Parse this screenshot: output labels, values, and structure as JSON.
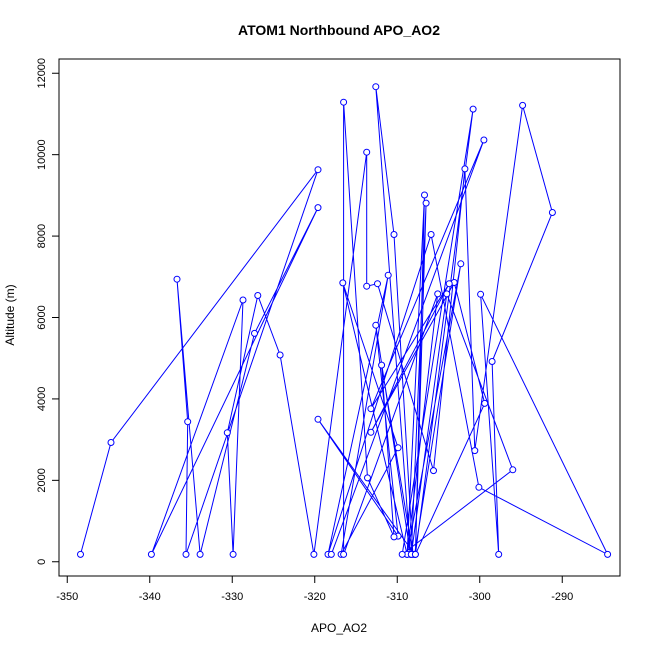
{
  "chart_data": {
    "type": "line",
    "title": "ATOM1 Northbound APO_AO2",
    "xlabel": "APO_AO2",
    "ylabel": "Altitude (m)",
    "xlim": [
      -351,
      -283
    ],
    "ylim": [
      -350,
      12350
    ],
    "xticks": [
      -350,
      -340,
      -330,
      -320,
      -310,
      -300,
      -290
    ],
    "yticks": [
      0,
      2000,
      4000,
      6000,
      8000,
      10000,
      12000
    ],
    "series": [
      {
        "color": "#0000ff",
        "marker": "open-circle",
        "points": [
          [
            -348.4,
            180
          ],
          [
            -344.7,
            2930
          ],
          [
            -319.6,
            9630
          ],
          [
            -335.6,
            180
          ],
          [
            -335.4,
            3440
          ],
          [
            -336.7,
            6940
          ],
          [
            -333.9,
            180
          ],
          [
            -327.3,
            5610
          ],
          [
            -319.6,
            8700
          ],
          [
            -339.8,
            180
          ],
          [
            -328.7,
            6430
          ],
          [
            -329.9,
            180
          ],
          [
            -330.6,
            3170
          ],
          [
            -326.9,
            6540
          ],
          [
            -324.2,
            5080
          ],
          [
            -320.1,
            180
          ],
          [
            -313.7,
            10060
          ],
          [
            -313.7,
            6770
          ],
          [
            -312.4,
            6830
          ],
          [
            -305.6,
            2240
          ],
          [
            -301.8,
            9650
          ],
          [
            -300.6,
            2730
          ],
          [
            -294.8,
            11210
          ],
          [
            -291.2,
            8580
          ],
          [
            -298.5,
            4920
          ],
          [
            -297.7,
            180
          ],
          [
            -299.9,
            6570
          ],
          [
            -284.5,
            180
          ],
          [
            -300.1,
            1830
          ],
          [
            -305.9,
            8040
          ],
          [
            -318.4,
            180
          ],
          [
            -311.1,
            7040
          ],
          [
            -316.8,
            180
          ],
          [
            -309.9,
            2800
          ],
          [
            -316.6,
            6850
          ],
          [
            -308.8,
            180
          ],
          [
            -302.3,
            7320
          ],
          [
            -307.9,
            180
          ],
          [
            -319.6,
            3500
          ],
          [
            -309.9,
            630
          ],
          [
            -312.6,
            5810
          ],
          [
            -308.4,
            180
          ],
          [
            -312.6,
            11670
          ],
          [
            -310.4,
            8040
          ],
          [
            -308.1,
            180
          ],
          [
            -311.9,
            4830
          ],
          [
            -310.4,
            610
          ],
          [
            -313.6,
            2060
          ],
          [
            -316.5,
            11290
          ],
          [
            -316.5,
            180
          ],
          [
            -305.1,
            6580
          ],
          [
            -308.8,
            180
          ],
          [
            -306.7,
            9010
          ],
          [
            -307.8,
            180
          ],
          [
            -300.8,
            11120
          ],
          [
            -309.4,
            180
          ],
          [
            -296.0,
            2260
          ],
          [
            -304.0,
            6580
          ],
          [
            -308.3,
            180
          ],
          [
            -306.5,
            8810
          ],
          [
            -307.8,
            180
          ],
          [
            -299.4,
            3890
          ],
          [
            -303.1,
            6860
          ],
          [
            -313.2,
            3180
          ],
          [
            -303.7,
            6830
          ],
          [
            -313.2,
            3760
          ],
          [
            -299.5,
            10360
          ],
          [
            -318.0,
            180
          ]
        ]
      }
    ]
  }
}
